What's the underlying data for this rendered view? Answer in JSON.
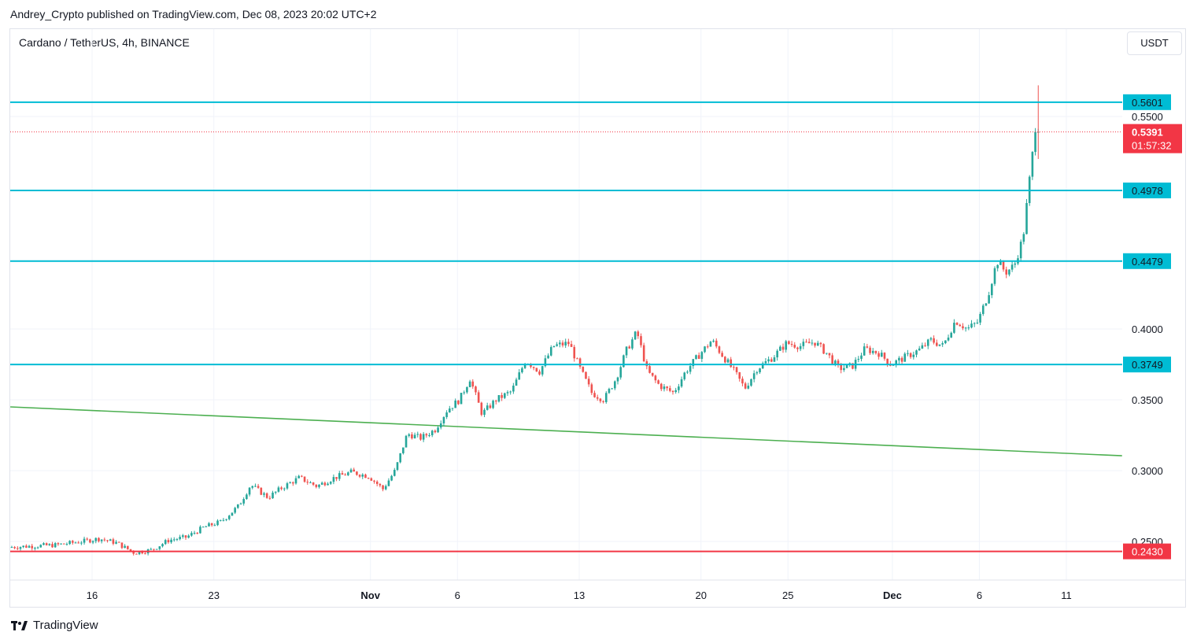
{
  "header": {
    "publisher_line": "Andrey_Crypto published on TradingView.com, Dec 08, 2023 20:02 UTC+2",
    "symbol_line": "Cardano / TetherUS, 4h, BINANCE",
    "currency_button": "USDT"
  },
  "footer": {
    "brand": "TradingView"
  },
  "colors": {
    "up": "#26a69a",
    "down": "#ef5350",
    "level": "#00bcd4",
    "trend": "#4caf50",
    "support": "#f23645",
    "price_badge": "#f23645"
  },
  "chart_data": {
    "type": "candlestick",
    "title": "Cardano / TetherUS, 4h, BINANCE",
    "ylim": [
      0.218,
      0.596
    ],
    "xlim_days": [
      -6.0,
      32.6
    ],
    "y_ticks": [
      {
        "value": 0.25,
        "label": "0.2500"
      },
      {
        "value": 0.3,
        "label": "0.3000"
      },
      {
        "value": 0.35,
        "label": "0.3500"
      },
      {
        "value": 0.4,
        "label": "0.4000"
      },
      {
        "value": 0.55,
        "label": "0.5500"
      }
    ],
    "x_ticks": [
      {
        "day": 16,
        "label": "16",
        "bold": false
      },
      {
        "day": 23,
        "label": "23",
        "bold": false
      },
      {
        "day": 32,
        "label": "Nov",
        "bold": true
      },
      {
        "day": 37,
        "label": "6",
        "bold": false
      },
      {
        "day": 44,
        "label": "13",
        "bold": false
      },
      {
        "day": 51,
        "label": "20",
        "bold": false
      },
      {
        "day": 56,
        "label": "25",
        "bold": false
      },
      {
        "day": 62,
        "label": "Dec",
        "bold": true
      },
      {
        "day": 67,
        "label": "6",
        "bold": false
      },
      {
        "day": 72,
        "label": "11",
        "bold": false
      }
    ],
    "x_day_offset": 11.3,
    "levels": [
      {
        "value": 0.5601,
        "label": "0.5601",
        "color": "level"
      },
      {
        "value": 0.4978,
        "label": "0.4978",
        "color": "level"
      },
      {
        "value": 0.4479,
        "label": "0.4479",
        "color": "level"
      },
      {
        "value": 0.3749,
        "label": "0.3749",
        "color": "level"
      },
      {
        "value": 0.243,
        "label": "0.2430",
        "color": "support"
      }
    ],
    "trendline": {
      "start": {
        "day": 11.3,
        "price": 0.345
      },
      "end": {
        "day": 75.2,
        "price": 0.3105
      }
    },
    "last_price": {
      "value": 0.5391,
      "label": "0.5391",
      "countdown": "01:57:32"
    },
    "anchors": [
      [
        11.3,
        0.246
      ],
      [
        14.0,
        0.2475
      ],
      [
        15.5,
        0.25
      ],
      [
        16.5,
        0.252
      ],
      [
        17.5,
        0.249
      ],
      [
        18.5,
        0.242
      ],
      [
        19.5,
        0.244
      ],
      [
        20.5,
        0.251
      ],
      [
        21.5,
        0.253
      ],
      [
        22.5,
        0.26
      ],
      [
        23.5,
        0.264
      ],
      [
        24.5,
        0.275
      ],
      [
        25.2,
        0.29
      ],
      [
        26.2,
        0.281
      ],
      [
        27.0,
        0.288
      ],
      [
        28.0,
        0.295
      ],
      [
        29.0,
        0.289
      ],
      [
        30.0,
        0.295
      ],
      [
        31.0,
        0.299
      ],
      [
        32.0,
        0.296
      ],
      [
        32.8,
        0.287
      ],
      [
        33.5,
        0.3
      ],
      [
        34.2,
        0.326
      ],
      [
        35.0,
        0.323
      ],
      [
        35.8,
        0.329
      ],
      [
        36.5,
        0.343
      ],
      [
        37.2,
        0.35
      ],
      [
        37.8,
        0.365
      ],
      [
        38.5,
        0.34
      ],
      [
        39.3,
        0.35
      ],
      [
        40.2,
        0.356
      ],
      [
        41.0,
        0.378
      ],
      [
        41.8,
        0.37
      ],
      [
        42.6,
        0.388
      ],
      [
        43.5,
        0.39
      ],
      [
        44.2,
        0.37
      ],
      [
        44.8,
        0.355
      ],
      [
        45.5,
        0.35
      ],
      [
        46.2,
        0.365
      ],
      [
        46.8,
        0.385
      ],
      [
        47.4,
        0.398
      ],
      [
        48.0,
        0.37
      ],
      [
        48.7,
        0.36
      ],
      [
        49.5,
        0.355
      ],
      [
        50.2,
        0.37
      ],
      [
        51.0,
        0.382
      ],
      [
        51.7,
        0.392
      ],
      [
        52.4,
        0.38
      ],
      [
        53.0,
        0.37
      ],
      [
        53.6,
        0.358
      ],
      [
        54.3,
        0.372
      ],
      [
        55.2,
        0.38
      ],
      [
        56.0,
        0.39
      ],
      [
        56.8,
        0.388
      ],
      [
        57.6,
        0.391
      ],
      [
        58.3,
        0.383
      ],
      [
        59.0,
        0.372
      ],
      [
        59.8,
        0.374
      ],
      [
        60.5,
        0.386
      ],
      [
        61.3,
        0.383
      ],
      [
        62.0,
        0.375
      ],
      [
        62.8,
        0.38
      ],
      [
        63.6,
        0.385
      ],
      [
        64.3,
        0.392
      ],
      [
        65.0,
        0.388
      ],
      [
        65.7,
        0.406
      ],
      [
        66.4,
        0.4
      ],
      [
        67.0,
        0.405
      ],
      [
        67.6,
        0.425
      ],
      [
        68.1,
        0.448
      ],
      [
        68.6,
        0.44
      ],
      [
        69.1,
        0.445
      ],
      [
        69.6,
        0.465
      ],
      [
        69.9,
        0.498
      ],
      [
        70.1,
        0.52
      ],
      [
        70.3,
        0.5391
      ]
    ]
  }
}
